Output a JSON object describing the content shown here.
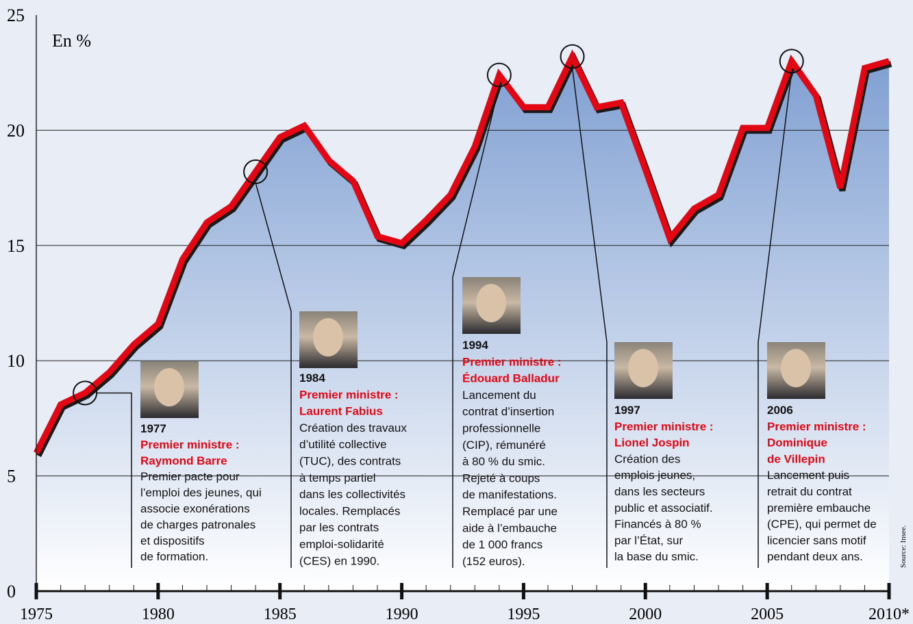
{
  "chart_data": {
    "type": "area",
    "unit_label": "En %",
    "source": "Source: Insee.",
    "x": [
      1975,
      1976,
      1977,
      1978,
      1979,
      1980,
      1981,
      1982,
      1983,
      1984,
      1985,
      1986,
      1987,
      1988,
      1989,
      1990,
      1991,
      1992,
      1993,
      1994,
      1995,
      1996,
      1997,
      1998,
      1999,
      2000,
      2001,
      2002,
      2003,
      2004,
      2005,
      2006,
      2007,
      2008,
      2009,
      2010
    ],
    "values": [
      6.0,
      8.1,
      8.6,
      9.5,
      10.7,
      11.6,
      14.4,
      16.0,
      16.7,
      18.2,
      19.7,
      20.2,
      18.7,
      17.8,
      15.4,
      15.1,
      16.1,
      17.2,
      19.3,
      22.4,
      21.0,
      21.0,
      23.2,
      21.0,
      21.2,
      18.3,
      15.3,
      16.6,
      17.2,
      20.1,
      20.1,
      23.0,
      21.5,
      17.5,
      22.7,
      23.0
    ],
    "color": "#e30613",
    "xlim": [
      1975,
      2010
    ],
    "ylim": [
      0,
      25
    ],
    "yticks": [
      0,
      5,
      10,
      15,
      20,
      25
    ],
    "xticks": [
      1975,
      1980,
      1985,
      1990,
      1995,
      2000,
      2005,
      {
        "value": 2010,
        "label": "2010*"
      }
    ],
    "grid": true,
    "annotations": [
      {
        "year": 1977,
        "title": [
          "Premier ministre :",
          "Raymond Barre"
        ],
        "text": [
          "Premier pacte pour",
          "l’emploi des jeunes, qui",
          "associe exonérations",
          "de charges patronales",
          "et dispositifs",
          "de formation."
        ]
      },
      {
        "year": 1984,
        "title": [
          "Premier ministre :",
          "Laurent Fabius"
        ],
        "text": [
          "Création des travaux",
          "d’utilité collective",
          "(TUC), des contrats",
          "à temps partiel",
          "dans les collectivités",
          "locales. Remplacés",
          "par les contrats",
          "emploi-solidarité",
          "(CES) en 1990."
        ]
      },
      {
        "year": 1994,
        "title": [
          "Premier ministre :",
          "Édouard Balladur"
        ],
        "text": [
          "Lancement du",
          "contrat d’insertion",
          "professionnelle",
          "(CIP), rémunéré",
          "à 80 % du smic.",
          "Rejeté à coups",
          "de manifestations.",
          "Remplacé par une",
          "aide à l’embauche",
          "de 1 000 francs",
          "(152 euros)."
        ]
      },
      {
        "year": 1997,
        "title": [
          "Premier ministre :",
          "Lionel Jospin"
        ],
        "text": [
          "Création des",
          "emplois jeunes,",
          "dans les secteurs",
          "public et associatif.",
          "Financés à 80 %",
          "par l’État, sur",
          "la base du smic."
        ]
      },
      {
        "year": 2006,
        "title": [
          "Premier ministre :",
          "Dominique",
          "de Villepin"
        ],
        "text": [
          "Lancement puis",
          "retrait du contrat",
          "première embauche",
          "(CPE), qui permet de",
          "licencier sans motif",
          "pendant deux ans."
        ]
      }
    ]
  }
}
